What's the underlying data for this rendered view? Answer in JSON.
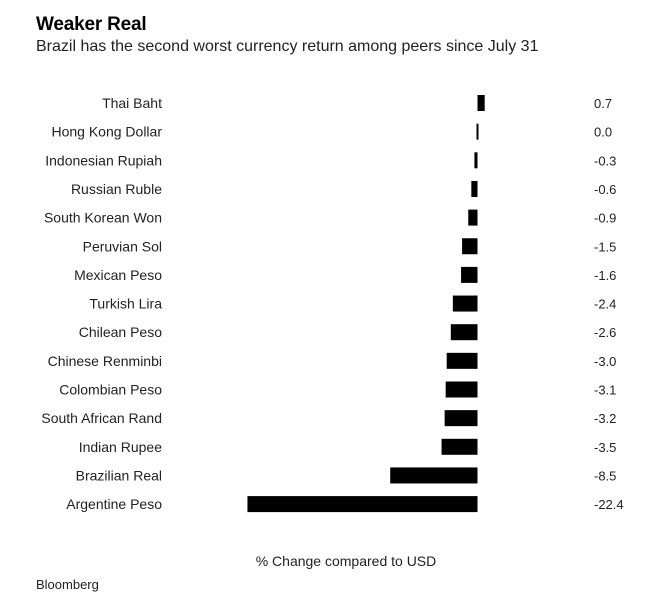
{
  "chart_data": {
    "type": "bar",
    "orientation": "horizontal",
    "title": "Weaker Real",
    "subtitle": "Brazil has the second worst currency return among peers since July 31",
    "categories": [
      "Thai Baht",
      "Hong Kong Dollar",
      "Indonesian Rupiah",
      "Russian Ruble",
      "South Korean Won",
      "Peruvian Sol",
      "Mexican Peso",
      "Turkish Lira",
      "Chilean Peso",
      "Chinese Renminbi",
      "Colombian Peso",
      "South African Rand",
      "Indian Rupee",
      "Brazilian Real",
      "Argentine Peso"
    ],
    "values": [
      0.7,
      0.0,
      -0.3,
      -0.6,
      -0.9,
      -1.5,
      -1.6,
      -2.4,
      -2.6,
      -3.0,
      -3.1,
      -3.2,
      -3.5,
      -8.5,
      -22.4
    ],
    "value_labels": [
      "0.7",
      "0.0",
      "-0.3",
      "-0.6",
      "-0.9",
      "-1.5",
      "-1.6",
      "-2.4",
      "-2.6",
      "-3.0",
      "-3.1",
      "-3.2",
      "-3.5",
      "-8.5",
      "-22.4"
    ],
    "xlabel": "% Change compared to USD",
    "ylabel": "",
    "xlim": [
      -22.4,
      0.7
    ],
    "bar_color": "#000000",
    "grid": false,
    "legend": false
  },
  "source": "Bloomberg"
}
